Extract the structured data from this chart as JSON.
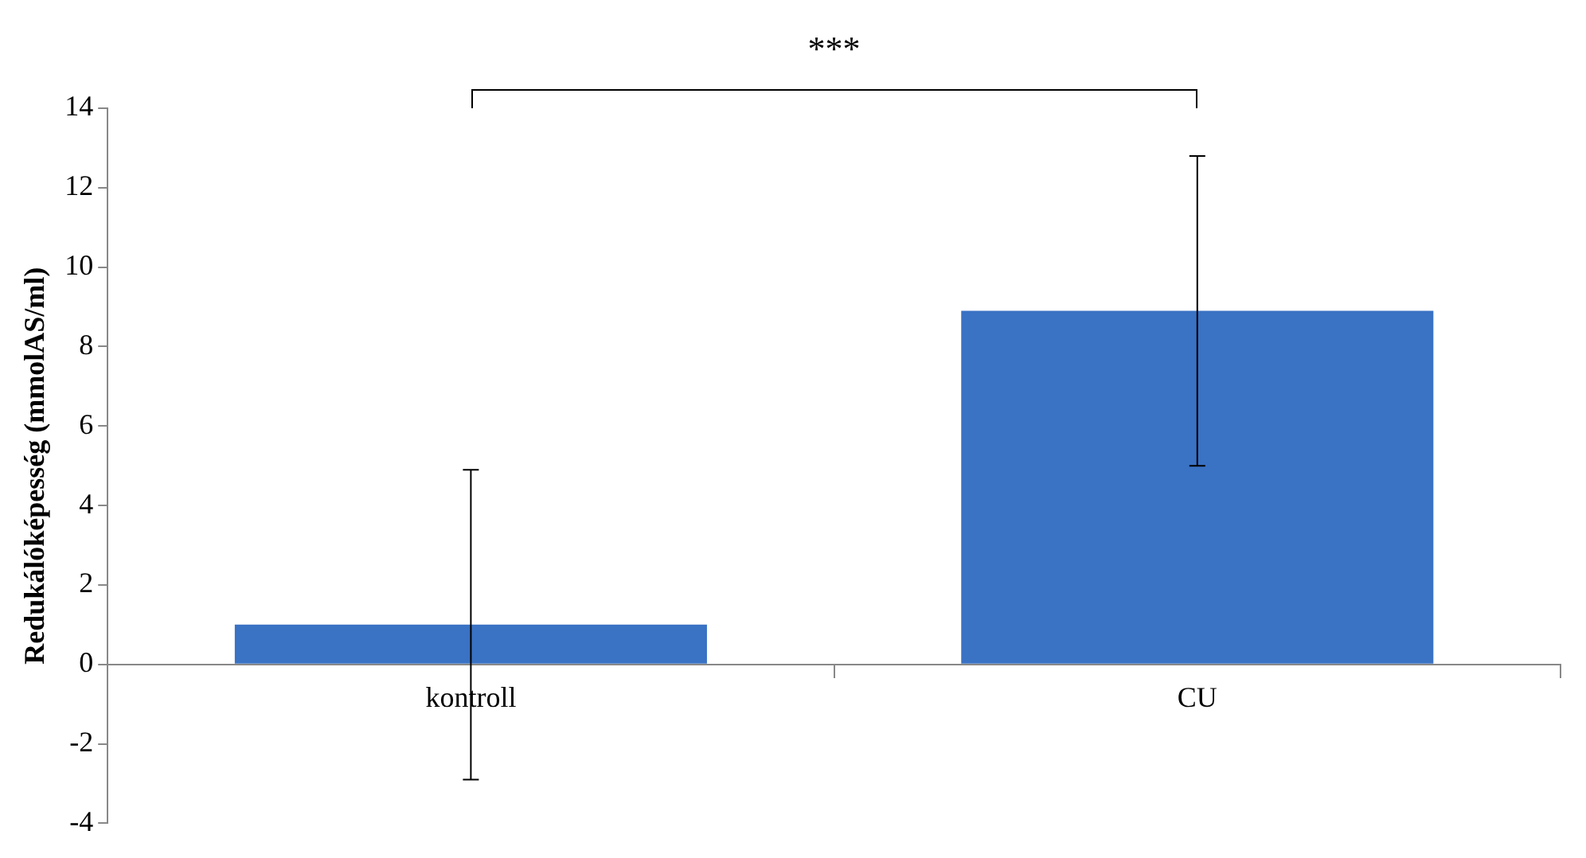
{
  "chart_data": {
    "type": "bar",
    "ylabel": "Redukálóképesség (mmolAS/ml)",
    "categories": [
      "kontroll",
      "CU"
    ],
    "series": [
      {
        "color": "#3a72c4",
        "values": [
          1.0,
          8.9
        ],
        "errors": [
          3.9,
          3.9
        ]
      }
    ],
    "ylim": [
      -4,
      14
    ],
    "yticks": [
      -4,
      -2,
      0,
      2,
      4,
      6,
      8,
      10,
      12,
      14
    ],
    "grid": false,
    "legend": false,
    "annotations": [
      "***"
    ]
  }
}
